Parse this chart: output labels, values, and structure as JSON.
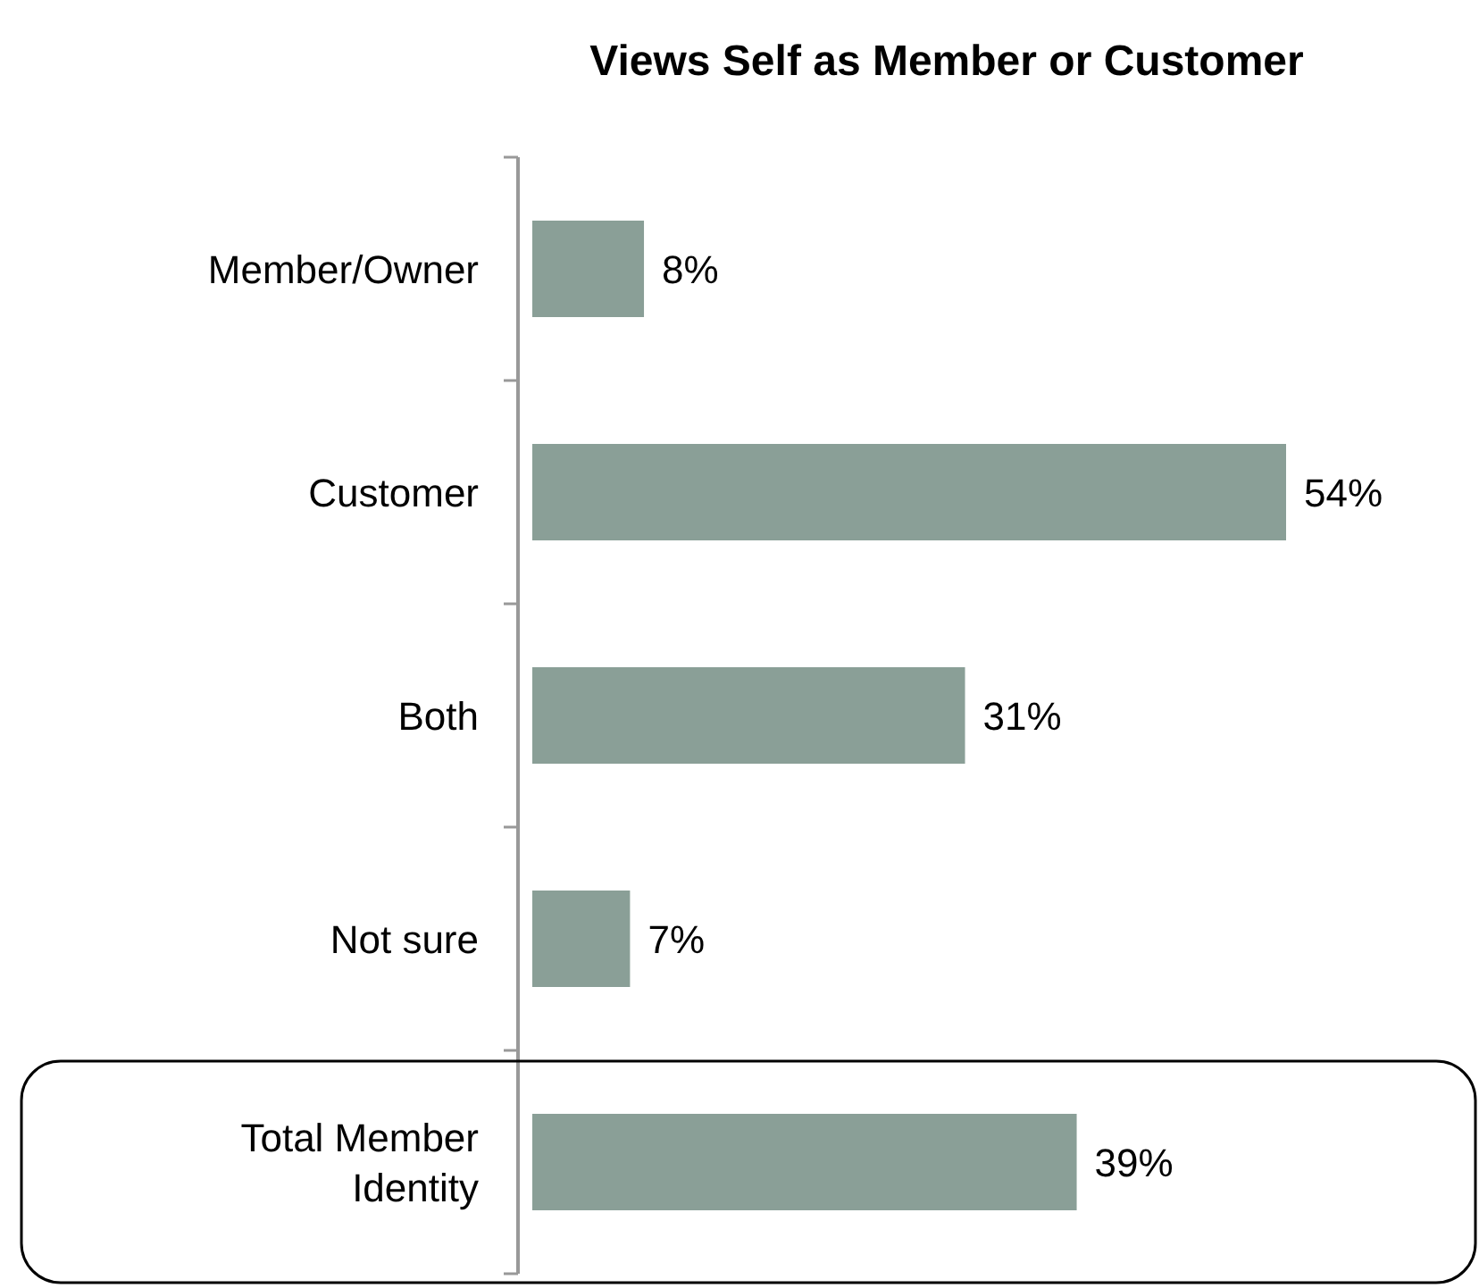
{
  "chart_data": {
    "type": "bar",
    "orientation": "horizontal",
    "title": "Views Self as Member or Customer",
    "categories": [
      "Member/Owner",
      "Customer",
      "Both",
      "Not sure",
      "Total Member Identity"
    ],
    "values": [
      8,
      54,
      31,
      7,
      39
    ],
    "color": "#8a9f97",
    "value_labels": [
      "8%",
      "54%",
      "31%",
      "7%",
      "39%"
    ]
  }
}
